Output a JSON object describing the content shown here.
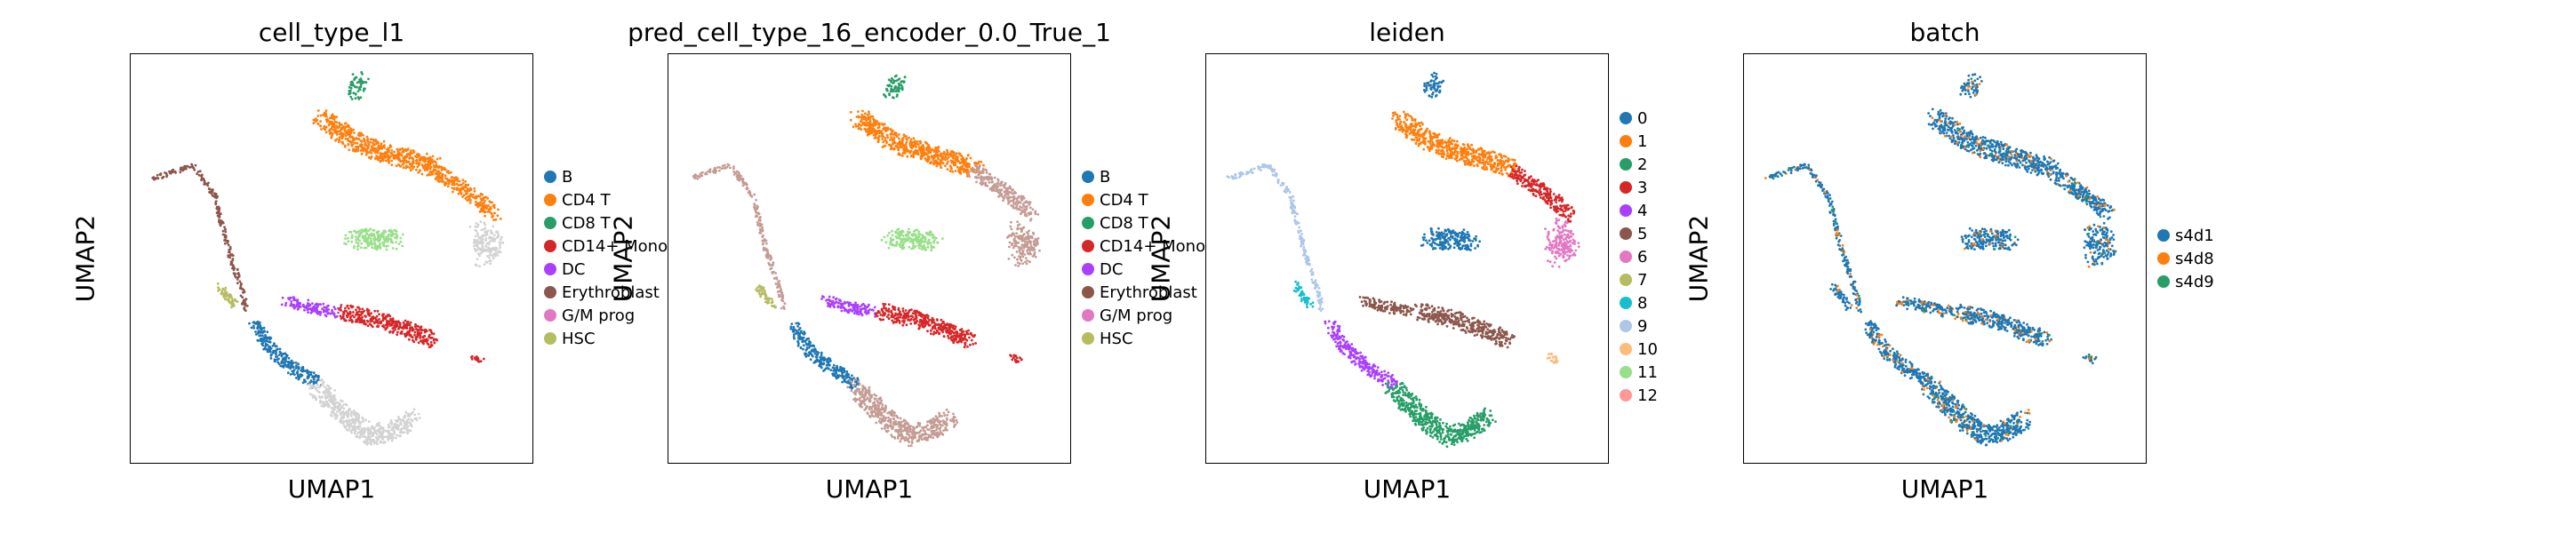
{
  "chart_data": [
    {
      "type": "scatter",
      "title": "cell_type_l1",
      "xlabel": "UMAP1",
      "ylabel": "UMAP2",
      "legend_position": "right",
      "legend": [
        {
          "label": "B",
          "color": "#1f77b4"
        },
        {
          "label": "CD4 T",
          "color": "#ff7f0e"
        },
        {
          "label": "CD8 T",
          "color": "#279e68"
        },
        {
          "label": "CD14+ Mono",
          "color": "#d62728"
        },
        {
          "label": "DC",
          "color": "#aa40fc"
        },
        {
          "label": "Erythroblast",
          "color": "#8c564b"
        },
        {
          "label": "G/M prog",
          "color": "#e377c2"
        },
        {
          "label": "HSC",
          "color": "#b5bd61"
        }
      ]
    },
    {
      "type": "scatter",
      "title": "pred_cell_type_16_encoder_0.0_True_1",
      "xlabel": "UMAP1",
      "ylabel": "UMAP2",
      "legend_position": "right",
      "legend": [
        {
          "label": "B",
          "color": "#1f77b4"
        },
        {
          "label": "CD4 T",
          "color": "#ff7f0e"
        },
        {
          "label": "CD8 T",
          "color": "#279e68"
        },
        {
          "label": "CD14+ Mono",
          "color": "#d62728"
        },
        {
          "label": "DC",
          "color": "#aa40fc"
        },
        {
          "label": "Erythroblast",
          "color": "#8c564b"
        },
        {
          "label": "G/M prog",
          "color": "#e377c2"
        },
        {
          "label": "HSC",
          "color": "#b5bd61"
        }
      ]
    },
    {
      "type": "scatter",
      "title": "leiden",
      "xlabel": "UMAP1",
      "ylabel": "UMAP2",
      "legend_position": "right",
      "legend": [
        {
          "label": "0",
          "color": "#1f77b4"
        },
        {
          "label": "1",
          "color": "#ff7f0e"
        },
        {
          "label": "2",
          "color": "#279e68"
        },
        {
          "label": "3",
          "color": "#d62728"
        },
        {
          "label": "4",
          "color": "#aa40fc"
        },
        {
          "label": "5",
          "color": "#8c564b"
        },
        {
          "label": "6",
          "color": "#e377c2"
        },
        {
          "label": "7",
          "color": "#b5bd61"
        },
        {
          "label": "8",
          "color": "#17becf"
        },
        {
          "label": "9",
          "color": "#aec7e8"
        },
        {
          "label": "10",
          "color": "#ffbb78"
        },
        {
          "label": "11",
          "color": "#98df8a"
        },
        {
          "label": "12",
          "color": "#ff9896"
        }
      ]
    },
    {
      "type": "scatter",
      "title": "batch",
      "xlabel": "UMAP1",
      "ylabel": "UMAP2",
      "legend_position": "right",
      "legend": [
        {
          "label": "s4d1",
          "color": "#1f77b4"
        },
        {
          "label": "s4d8",
          "color": "#ff7f0e"
        },
        {
          "label": "s4d9",
          "color": "#279e68"
        }
      ]
    }
  ]
}
